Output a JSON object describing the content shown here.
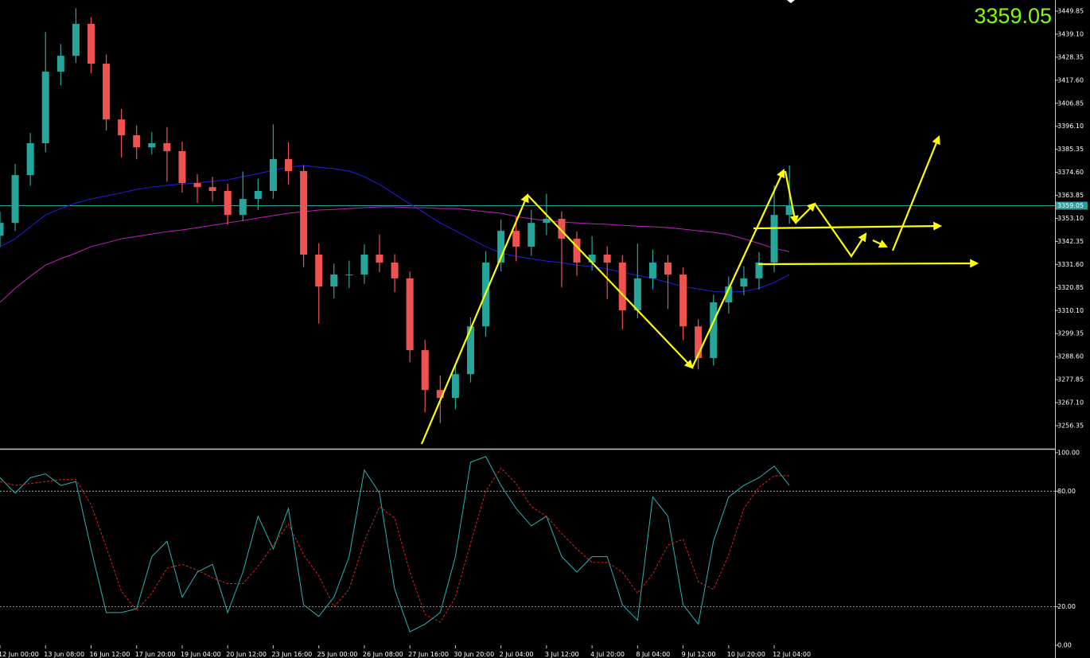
{
  "chart_data": [
    {
      "type": "candlestick",
      "categories": [
        "12 Jun 00:00",
        null,
        null,
        "13 Jun 08:00",
        null,
        null,
        "16 Jun 12:00",
        null,
        null,
        "17 Jun 20:00",
        null,
        null,
        "19 Jun 04:00",
        null,
        null,
        "20 Jun 12:00",
        null,
        null,
        "23 Jun 16:00",
        null,
        null,
        "25 Jun 00:00",
        null,
        null,
        "26 Jun 08:00",
        null,
        null,
        "27 Jun 16:00",
        null,
        null,
        "30 Jun 20:00",
        null,
        null,
        "2 Jul 04:00",
        null,
        null,
        "3 Jul 12:00",
        null,
        null,
        "4 Jul 20:00",
        null,
        null,
        "8 Jul 04:00",
        null,
        null,
        "9 Jul 12:00",
        null,
        null,
        "10 Jul 20:00",
        null,
        null,
        "12 Jul 04:00",
        null
      ],
      "open": [
        3345.0,
        3351.0,
        3373.3,
        3388.2,
        3421.6,
        3429.0,
        3443.9,
        3425.3,
        3399.3,
        3391.9,
        3386.3,
        3388.2,
        3384.5,
        3369.6,
        3367.7,
        3365.9,
        3354.7,
        3362.2,
        3365.9,
        3380.8,
        3375.2,
        3336.2,
        3321.3,
        3326.9,
        3326.9,
        3336.2,
        3332.5,
        3325.1,
        3291.6,
        3273.0,
        3269.3,
        3280.4,
        3302.7,
        3332.5,
        3347.3,
        3339.9,
        3351.0,
        3352.9,
        3343.6,
        3332.5,
        3336.2,
        3332.5,
        3310.2,
        3325.1,
        3332.5,
        3326.9,
        3302.7,
        3287.9,
        3313.9,
        3321.3,
        3325.1,
        3332.5,
        3354.7
      ],
      "high": [
        3356.2,
        3378.5,
        3393.0,
        3440.1,
        3434.5,
        3451.2,
        3447.0,
        3429.6,
        3404.2,
        3396.5,
        3393.4,
        3395.8,
        3389.0,
        3373.8,
        3372.5,
        3369.3,
        3375.0,
        3371.6,
        3397.0,
        3388.6,
        3378.0,
        3341.5,
        3332.0,
        3333.4,
        3341.0,
        3345.6,
        3336.4,
        3328.3,
        3296.4,
        3279.8,
        3285.1,
        3306.9,
        3337.8,
        3352.6,
        3353.8,
        3357.2,
        3364.6,
        3356.4,
        3347.0,
        3344.8,
        3340.1,
        3335.9,
        3341.3,
        3338.6,
        3336.0,
        3330.2,
        3306.0,
        3317.5,
        3326.0,
        3330.8,
        3337.4,
        3368.5,
        3377.8
      ],
      "low": [
        3339.8,
        3347.2,
        3368.4,
        3384.0,
        3415.3,
        3425.6,
        3420.8,
        3394.1,
        3381.6,
        3380.7,
        3383.0,
        3370.2,
        3365.1,
        3360.4,
        3361.0,
        3350.2,
        3351.8,
        3357.0,
        3362.3,
        3368.9,
        3330.4,
        3304.0,
        3315.8,
        3320.6,
        3322.5,
        3328.0,
        3318.7,
        3286.0,
        3262.5,
        3257.6,
        3264.0,
        3276.5,
        3298.0,
        3328.4,
        3333.1,
        3335.6,
        3345.3,
        3320.9,
        3326.3,
        3328.7,
        3315.5,
        3301.4,
        3306.5,
        3320.0,
        3310.8,
        3296.3,
        3282.6,
        3284.4,
        3308.7,
        3317.2,
        3319.9,
        3328.0,
        3350.6
      ],
      "close": [
        3351.0,
        3373.3,
        3388.2,
        3421.6,
        3429.0,
        3443.9,
        3425.3,
        3399.3,
        3391.9,
        3386.3,
        3388.2,
        3384.5,
        3369.6,
        3367.7,
        3365.9,
        3354.7,
        3362.2,
        3365.9,
        3380.8,
        3375.2,
        3336.2,
        3321.3,
        3326.9,
        3326.9,
        3336.2,
        3332.5,
        3325.1,
        3291.6,
        3273.0,
        3269.3,
        3280.4,
        3302.7,
        3332.5,
        3347.3,
        3339.9,
        3351.0,
        3352.9,
        3343.6,
        3332.5,
        3336.2,
        3332.5,
        3310.2,
        3325.1,
        3332.5,
        3326.9,
        3302.7,
        3287.9,
        3313.9,
        3321.3,
        3325.1,
        3332.5,
        3354.7,
        3359.05
      ],
      "up_color": "#26a69a",
      "down_color": "#ef5350",
      "series": [
        {
          "color": "#2020e0",
          "values": [
            3339.9,
            3343.6,
            3349.2,
            3354.7,
            3357.7,
            3360.3,
            3362.2,
            3363.6,
            3365.1,
            3366.6,
            3367.7,
            3368.5,
            3369.2,
            3369.6,
            3370.4,
            3371.1,
            3372.6,
            3374.0,
            3375.6,
            3377.0,
            3377.8,
            3377.0,
            3376.3,
            3375.2,
            3372.6,
            3368.9,
            3364.4,
            3359.9,
            3355.5,
            3351.0,
            3347.3,
            3343.6,
            3339.9,
            3336.9,
            3335.4,
            3334.3,
            3333.2,
            3332.5,
            3331.3,
            3330.6,
            3329.5,
            3328.0,
            3326.5,
            3325.1,
            3323.2,
            3321.3,
            3320.2,
            3319.0,
            3318.7,
            3319.0,
            3320.5,
            3323.2,
            3326.9
          ]
        },
        {
          "color": "#c020c0",
          "values": [
            3313.9,
            3320.5,
            3326.1,
            3331.3,
            3334.3,
            3336.9,
            3339.9,
            3341.7,
            3343.6,
            3344.7,
            3345.8,
            3346.9,
            3347.7,
            3348.8,
            3349.9,
            3351.0,
            3352.1,
            3353.3,
            3354.4,
            3355.5,
            3356.2,
            3357.0,
            3357.3,
            3357.7,
            3358.1,
            3358.5,
            3358.5,
            3358.1,
            3358.1,
            3357.7,
            3357.7,
            3357.0,
            3356.2,
            3355.5,
            3354.0,
            3352.9,
            3352.1,
            3351.4,
            3351.0,
            3350.6,
            3350.3,
            3349.9,
            3349.5,
            3349.2,
            3348.8,
            3348.1,
            3347.3,
            3346.6,
            3345.5,
            3343.6,
            3341.4,
            3339.1,
            3337.6
          ]
        }
      ],
      "ylim": [
        3245.95,
        3455.05
      ],
      "yticks": [
        3449.85,
        {
          "value": 3439.1,
          "label": "3439.10"
        },
        3428.35,
        {
          "value": 3417.6,
          "label": "3417.60"
        },
        3406.85,
        {
          "value": 3396.1,
          "label": "3396.10"
        },
        3385.35,
        {
          "value": 3374.6,
          "label": "3374.60"
        },
        3363.85,
        {
          "value": 3353.1,
          "label": "3353.10"
        },
        3342.35,
        {
          "value": 3331.6,
          "label": "3331.60"
        },
        3320.85,
        {
          "value": 3310.1,
          "label": "3310.10"
        },
        3299.35,
        {
          "value": 3288.6,
          "label": "3288.60"
        },
        3277.85,
        {
          "value": 3267.1,
          "label": "3267.10"
        },
        3256.35
      ],
      "current_price": 3359.05,
      "current_price_color": "#7fff00"
    },
    {
      "type": "line",
      "series": [
        {
          "color": "#2ab3b3",
          "style": "solid",
          "values": [
            87,
            79,
            87,
            89,
            83,
            85,
            50,
            17,
            17,
            19,
            46,
            54,
            25,
            38,
            42,
            17,
            38,
            67,
            50,
            71,
            21,
            15,
            25,
            46,
            91,
            79,
            29,
            7,
            11,
            17,
            46,
            95,
            98,
            83,
            71,
            62,
            67,
            46,
            38,
            46,
            46,
            21,
            13,
            77,
            67,
            21,
            11,
            54,
            77,
            83,
            87,
            93,
            83
          ]
        },
        {
          "color": "#e02020",
          "style": "dashed",
          "values": [
            85,
            83,
            84,
            85,
            86,
            86,
            73,
            51,
            28,
            18,
            27,
            40,
            42,
            39,
            35,
            32,
            32,
            41,
            52,
            63,
            47,
            36,
            20,
            29,
            54,
            72,
            66,
            38,
            16,
            12,
            25,
            53,
            80,
            92,
            84,
            72,
            67,
            58,
            50,
            43,
            43,
            38,
            27,
            37,
            52,
            55,
            33,
            29,
            47,
            71,
            82,
            88,
            88
          ]
        }
      ],
      "ylim": [
        -6.6,
        101.2
      ],
      "yticks": [
        {
          "value": 100,
          "label": "100.00"
        },
        {
          "value": 80,
          "label": "80.00"
        },
        {
          "value": 20,
          "label": "20.00"
        },
        {
          "value": 0,
          "label": "0.00"
        }
      ],
      "levels": [
        80,
        20
      ]
    }
  ]
}
